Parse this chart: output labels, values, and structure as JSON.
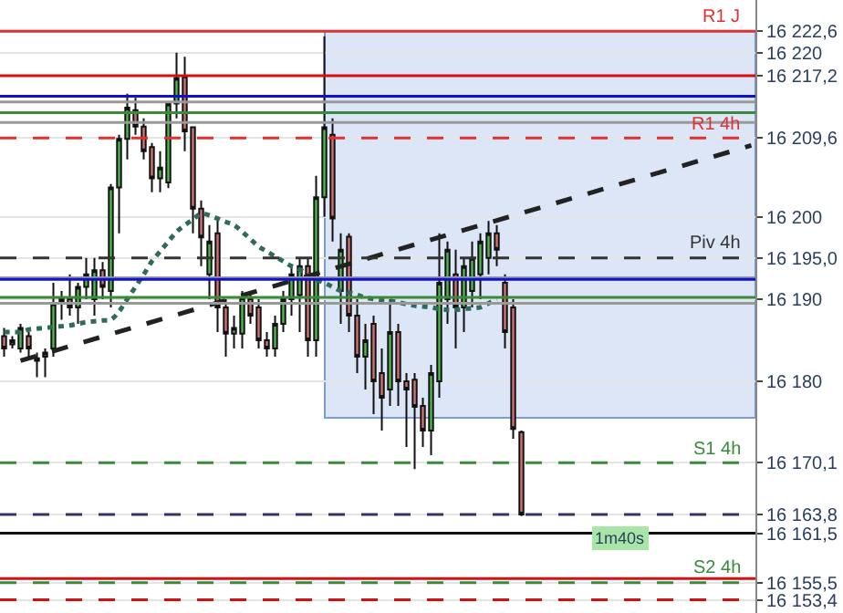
{
  "chart_data": {
    "type": "candlestick",
    "categories": [
      null,
      null,
      null,
      null,
      null,
      null,
      null,
      null,
      null,
      null,
      null,
      null,
      null,
      null,
      null,
      null,
      null,
      null,
      null,
      null,
      null,
      null,
      null,
      null,
      null,
      null,
      null,
      null,
      null,
      null,
      null,
      null,
      null,
      null,
      null,
      null,
      null,
      null,
      null,
      null,
      null,
      null,
      null,
      null,
      null,
      null,
      null,
      null,
      null,
      null,
      null,
      null,
      null,
      null,
      null,
      null,
      null,
      null,
      null,
      null,
      null,
      null,
      null,
      null,
      null,
      null,
      null,
      null,
      null,
      null,
      null,
      null,
      null,
      null,
      null,
      null,
      null,
      null,
      null,
      null,
      null,
      null,
      null,
      null,
      null,
      null,
      null,
      null,
      null,
      null,
      null,
      null
    ],
    "ohlc": [
      [
        16185.5,
        16186.5,
        16183,
        16184
      ],
      [
        16184.5,
        16185.5,
        16184,
        16185
      ],
      [
        16184,
        16187,
        16183.5,
        16186.5
      ],
      [
        16185.5,
        16186,
        16183,
        16184
      ],
      [
        16182.5,
        16183.5,
        16180.5,
        16182.8
      ],
      [
        16183,
        16184,
        16180.5,
        16183.5
      ],
      [
        16184,
        16192,
        16183,
        16189.5
      ],
      [
        16189.5,
        16191,
        16187.5,
        16190
      ],
      [
        16190,
        16193,
        16188,
        16189
      ],
      [
        16189,
        16192,
        16187,
        16191.5
      ],
      [
        16191.5,
        16195,
        16190,
        16193
      ],
      [
        16190,
        16195,
        16188,
        16193.5
      ],
      [
        16193.5,
        16194.5,
        16190,
        16191.5
      ],
      [
        16191,
        16204,
        16189,
        16203.6
      ],
      [
        16203.6,
        16210,
        16198,
        16209.5
      ],
      [
        16209.5,
        16215,
        16207,
        16213.3
      ],
      [
        16213,
        16214.5,
        16210,
        16211
      ],
      [
        16211,
        16212,
        16207,
        16208
      ],
      [
        16208.5,
        16209,
        16203,
        16204.7
      ],
      [
        16204.7,
        16208,
        16203,
        16206
      ],
      [
        16204.2,
        16214,
        16203.5,
        16213.8
      ],
      [
        16213.8,
        16220,
        16212,
        16216.9
      ],
      [
        16217,
        16219.5,
        16208,
        16210.4
      ],
      [
        16210.9,
        16211,
        16198,
        16201
      ],
      [
        16201,
        16202,
        16194,
        16197.5
      ],
      [
        16193,
        16199,
        16190,
        16197
      ],
      [
        16198,
        16200,
        16186,
        16189
      ],
      [
        16189,
        16190,
        16183,
        16185.8
      ],
      [
        16185.8,
        16188,
        16184,
        16186.5
      ],
      [
        16185.8,
        16191,
        16184,
        16190.2
      ],
      [
        16190,
        16191,
        16187,
        16188
      ],
      [
        16189,
        16190,
        16184,
        16185
      ],
      [
        16185,
        16186,
        16183,
        16184
      ],
      [
        16184,
        16188,
        16183,
        16187
      ],
      [
        16187,
        16191,
        16186,
        16190
      ],
      [
        16190,
        16194,
        16188,
        16193
      ],
      [
        16190.5,
        16195,
        16186,
        16194
      ],
      [
        16194,
        16195,
        16183,
        16185
      ],
      [
        16185,
        16205,
        16183,
        16202.4
      ],
      [
        16202.4,
        16222,
        16200,
        16210.9
      ],
      [
        16210,
        16212,
        16197,
        16199.8
      ],
      [
        16191,
        16198,
        16187,
        16196
      ],
      [
        16197.6,
        16198,
        16186,
        16188
      ],
      [
        16188,
        16190,
        16181,
        16183
      ],
      [
        16183,
        16187,
        16179,
        16185
      ],
      [
        16187,
        16188,
        16176,
        16180
      ],
      [
        16181,
        16184,
        16174,
        16178
      ],
      [
        16179,
        16190,
        16177,
        16186
      ],
      [
        16186,
        16187,
        16177,
        16180
      ],
      [
        16180,
        16181,
        16172,
        16179
      ],
      [
        16180.2,
        16181,
        16169.3,
        16176.9
      ],
      [
        16177,
        16178,
        16172,
        16174
      ],
      [
        16174,
        16182,
        16171,
        16181
      ],
      [
        16180,
        16198,
        16178,
        16192
      ],
      [
        16190,
        16197,
        16187,
        16196
      ],
      [
        16193,
        16196,
        16184,
        16189
      ],
      [
        16189,
        16195,
        16186,
        16194
      ],
      [
        16191,
        16197,
        16189,
        16195
      ],
      [
        16193,
        16198,
        16190,
        16197
      ],
      [
        16195,
        16199.5,
        16193,
        16198
      ],
      [
        16198,
        16199,
        16194,
        16196
      ],
      [
        16192,
        16193,
        16184,
        16186
      ],
      [
        16189,
        16190,
        16173,
        16174.2
      ],
      [
        16173.8,
        16174,
        16163.6,
        16163.8
      ],
      null,
      null,
      null,
      null,
      null,
      null,
      null,
      null,
      null,
      null,
      null,
      null,
      null,
      null,
      null,
      null,
      null,
      null,
      null,
      null,
      null,
      null,
      null,
      null,
      null,
      null,
      null,
      null
    ],
    "series": [
      {
        "type": "line",
        "color": "#2f6b5a",
        "line_style": "dotted",
        "values": [
          16186,
          16186,
          16186,
          16186.3,
          16186.4,
          16186.5,
          16186.6,
          16186.7,
          16186.8,
          16187,
          16187.2,
          16187.3,
          16187.4,
          16187.5,
          16188.5,
          16190,
          16191.5,
          16193,
          16194.6,
          16195.8,
          16197,
          16198.2,
          16199,
          16199.7,
          16200.4,
          16200.2,
          16199.8,
          16199.4,
          16199,
          16198.2,
          16197.3,
          16196.4,
          16195.8,
          16195.2,
          16194.6,
          16194,
          16193.6,
          16193,
          16192.4,
          16192,
          16191.5,
          16191,
          16190.8,
          16190.5,
          16190.2,
          16190,
          16189.9,
          16189.8,
          16189.6,
          16189.4,
          16189.2,
          16189.1,
          16189,
          16188.8,
          16188.7,
          16188.7,
          16188.8,
          16188.9,
          16189,
          16189.5,
          16190,
          null,
          null,
          null,
          null,
          null,
          null,
          null,
          null,
          null,
          null,
          null,
          null,
          null,
          null,
          null,
          null,
          null,
          null,
          null,
          null,
          null,
          null,
          null,
          null,
          null,
          null,
          null,
          null,
          null,
          null,
          null
        ]
      },
      {
        "type": "line",
        "color": "#222222",
        "line_style": "dashed",
        "values": [
          null,
          null,
          16182.5,
          null,
          null,
          null,
          null,
          null,
          null,
          null,
          null,
          null,
          null,
          null,
          null,
          null,
          null,
          null,
          null,
          null,
          null,
          null,
          null,
          null,
          null,
          null,
          null,
          null,
          null,
          null,
          null,
          null,
          null,
          null,
          null,
          null,
          null,
          null,
          null,
          null,
          null,
          null,
          null,
          null,
          null,
          null,
          null,
          null,
          null,
          null,
          null,
          null,
          null,
          null,
          null,
          null,
          null,
          null,
          null,
          null,
          null,
          null,
          null,
          null,
          null,
          null,
          null,
          null,
          null,
          null,
          null,
          null,
          null,
          null,
          null,
          null,
          null,
          null,
          null,
          null,
          null,
          null,
          null,
          null,
          null,
          null,
          null,
          null,
          null,
          null,
          null,
          16208.7
        ]
      }
    ],
    "ylim": [
      16151.8,
      16226.4
    ],
    "yticks": [
      {
        "value": 16222.6,
        "label": "16 222,6"
      },
      {
        "value": 16220,
        "label": "16 220"
      },
      {
        "value": 16217.2,
        "label": "16 217,2"
      },
      {
        "value": 16209.6,
        "label": "16 209,6"
      },
      {
        "value": 16200,
        "label": "16 200"
      },
      {
        "value": 16195.0,
        "label": "16 195,0"
      },
      {
        "value": 16190,
        "label": "16 190"
      },
      {
        "value": 16180,
        "label": "16 180"
      },
      {
        "value": 16170.1,
        "label": "16 170,1"
      },
      {
        "value": 16163.8,
        "label": "16 163,8"
      },
      {
        "value": 16161.5,
        "label": "16 161,5"
      },
      {
        "value": 16155.5,
        "label": "16 155,5"
      },
      {
        "value": 16153.4,
        "label": "16 153,4"
      }
    ],
    "ref_lines": [
      {
        "axis": "y",
        "value": 16222.6,
        "label": "R1 J",
        "color": "#e03030",
        "line_style": "solid"
      },
      {
        "axis": "y",
        "value": 16217.2,
        "label": null,
        "color": "#d41010",
        "line_style": "solid"
      },
      {
        "axis": "y",
        "value": 16214.0,
        "label": null,
        "color": "#999999",
        "line_style": "solid"
      },
      {
        "axis": "y",
        "value": 16214.7,
        "label": null,
        "color": "#1010d0",
        "line_style": "solid"
      },
      {
        "axis": "y",
        "value": 16212.7,
        "label": null,
        "color": "#3a8a3a",
        "line_style": "solid"
      },
      {
        "axis": "y",
        "value": 16211.5,
        "label": null,
        "color": "#999999",
        "line_style": "solid"
      },
      {
        "axis": "y",
        "value": 16209.6,
        "label": "R1 4h",
        "color": "#e03030",
        "line_style": "dashed"
      },
      {
        "axis": "y",
        "value": 16195.0,
        "label": "Piv 4h",
        "color": "#333333",
        "line_style": "dashed"
      },
      {
        "axis": "y",
        "value": 16192.6,
        "label": null,
        "color": "#999999",
        "line_style": "solid"
      },
      {
        "axis": "y",
        "value": 16192.4,
        "label": null,
        "color": "#1010d0",
        "line_style": "solid"
      },
      {
        "axis": "y",
        "value": 16190.2,
        "label": null,
        "color": "#3a8a3a",
        "line_style": "solid"
      },
      {
        "axis": "y",
        "value": 16189.5,
        "label": null,
        "color": "#999999",
        "line_style": "solid"
      },
      {
        "axis": "y",
        "value": 16170.1,
        "label": "S1 4h",
        "color": "#3a8a3a",
        "line_style": "dashed"
      },
      {
        "axis": "y",
        "value": 16163.8,
        "label": null,
        "color": "#333366",
        "line_style": "dashed"
      },
      {
        "axis": "y",
        "value": 16161.5,
        "label": null,
        "color": "#111111",
        "line_style": "solid"
      },
      {
        "axis": "y",
        "value": 16156.0,
        "label": null,
        "color": "#d41010",
        "line_style": "solid"
      },
      {
        "axis": "y",
        "value": 16155.5,
        "label": "S2 4h",
        "color": "#3a8a3a",
        "line_style": "dashed"
      },
      {
        "axis": "y",
        "value": 16153.4,
        "label": null,
        "color": "#d41010",
        "line_style": "dashed"
      }
    ],
    "annotations": [
      "1m40s"
    ],
    "grid": "y"
  }
}
